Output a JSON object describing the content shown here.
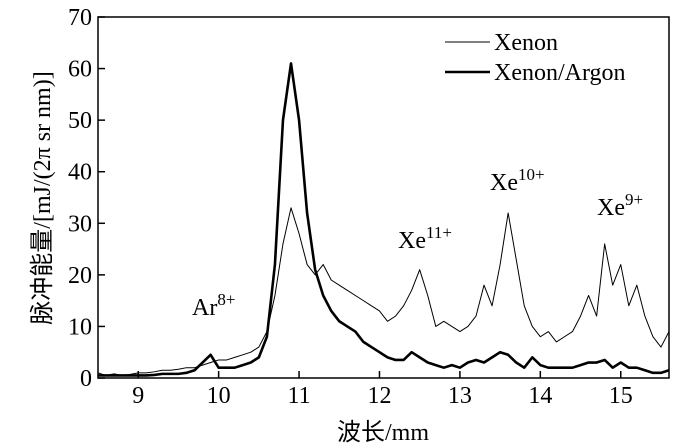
{
  "chart_data": {
    "type": "line",
    "x_label": "波长/mm",
    "y_label": "脉冲能量/[mJ/(2π sr nm)]",
    "x": [
      8.5,
      8.6,
      8.7,
      8.8,
      8.9,
      9.0,
      9.1,
      9.2,
      9.3,
      9.4,
      9.5,
      9.6,
      9.7,
      9.8,
      9.9,
      10.0,
      10.1,
      10.2,
      10.3,
      10.4,
      10.5,
      10.6,
      10.7,
      10.8,
      10.9,
      11.0,
      11.1,
      11.2,
      11.3,
      11.4,
      11.5,
      11.6,
      11.7,
      11.8,
      11.9,
      12.0,
      12.1,
      12.2,
      12.3,
      12.4,
      12.5,
      12.6,
      12.7,
      12.8,
      12.9,
      13.0,
      13.1,
      13.2,
      13.3,
      13.4,
      13.5,
      13.6,
      13.7,
      13.8,
      13.9,
      14.0,
      14.1,
      14.2,
      14.3,
      14.4,
      14.5,
      14.6,
      14.7,
      14.8,
      14.9,
      15.0,
      15.1,
      15.2,
      15.3,
      15.4,
      15.5,
      15.6
    ],
    "series": [
      {
        "name": "Xenon",
        "color": "#000000",
        "width": 1,
        "values": [
          1,
          0.5,
          0.8,
          0.5,
          0.7,
          1,
          1,
          1.2,
          1.5,
          1.5,
          1.7,
          2,
          2,
          2.5,
          3,
          3.5,
          3.5,
          4,
          4.5,
          5,
          6,
          9,
          16,
          26,
          33,
          28,
          22,
          20,
          22,
          19,
          18,
          17,
          16,
          15,
          14,
          13,
          11,
          12,
          14,
          17,
          21,
          16,
          10,
          11,
          10,
          9,
          10,
          12,
          18,
          14,
          22,
          32,
          23,
          14,
          10,
          8,
          9,
          7,
          8,
          9,
          12,
          16,
          12,
          26,
          18,
          22,
          14,
          18,
          12,
          8,
          6,
          9
        ]
      },
      {
        "name": "Xenon/Argon",
        "color": "#000000",
        "width": 2.6,
        "values": [
          0.5,
          0.5,
          0.5,
          0.5,
          0.5,
          0.5,
          0.5,
          0.6,
          0.8,
          0.8,
          0.8,
          1,
          1.5,
          3,
          4.5,
          2,
          2,
          2,
          2.5,
          3,
          4,
          8,
          22,
          50,
          61,
          50,
          32,
          21,
          16,
          13,
          11,
          10,
          9,
          7,
          6,
          5,
          4,
          3.5,
          3.5,
          5,
          4,
          3,
          2.5,
          2,
          2.5,
          2,
          3,
          3.5,
          3,
          4,
          5,
          4.5,
          3,
          2,
          4,
          2.5,
          2,
          2,
          2,
          2,
          2.5,
          3,
          3,
          3.5,
          2,
          3,
          2,
          2,
          1.5,
          1,
          1,
          1.5
        ]
      }
    ],
    "annotations": [
      {
        "text": "Ar",
        "sup": "8+"
      },
      {
        "text": "Xe",
        "sup": "11+"
      },
      {
        "text": "Xe",
        "sup": "10+"
      },
      {
        "text": "Xe",
        "sup": "9+"
      }
    ],
    "xlim": [
      8.5,
      15.6
    ],
    "ylim": [
      0,
      70
    ],
    "xticks": [
      9,
      10,
      11,
      12,
      13,
      14,
      15
    ],
    "yticks": [
      0,
      10,
      20,
      30,
      40,
      50,
      60,
      70
    ],
    "grid": false,
    "legend": "upper right"
  }
}
